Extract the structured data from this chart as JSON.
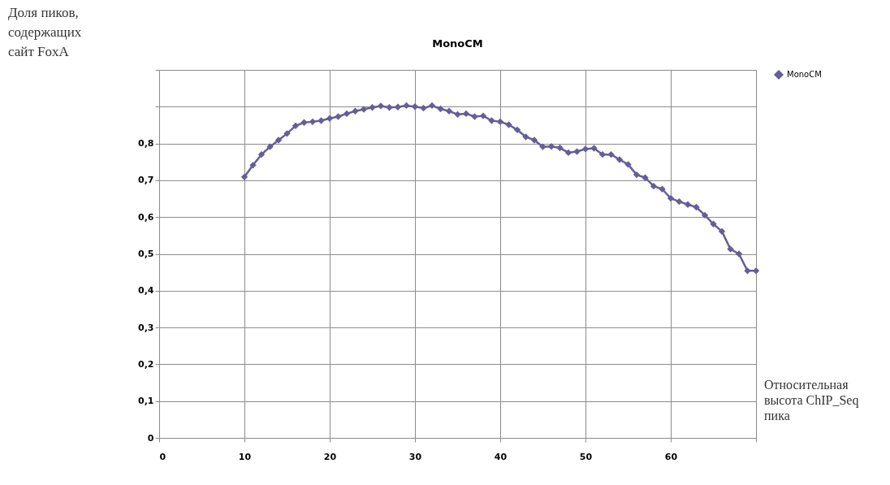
{
  "chart_data": {
    "type": "line",
    "title": "MonoCM",
    "xlabel": "Относительная высота ChIP_Seq пика",
    "ylabel": "Доля пиков, содержащих сайт FoxA",
    "x": [
      10,
      11,
      12,
      13,
      14,
      15,
      16,
      17,
      18,
      19,
      20,
      21,
      22,
      23,
      24,
      25,
      26,
      27,
      28,
      29,
      30,
      31,
      32,
      33,
      34,
      35,
      36,
      37,
      38,
      39,
      40,
      41,
      42,
      43,
      44,
      45,
      46,
      47,
      48,
      49,
      50,
      51,
      52,
      53,
      54,
      55,
      56,
      57,
      58,
      59,
      60,
      61,
      62,
      63,
      64,
      65,
      66,
      67,
      68,
      69,
      70
    ],
    "series": [
      {
        "name": "MonoCM",
        "color": "#635f98",
        "values": [
          0.709,
          0.741,
          0.77,
          0.791,
          0.809,
          0.827,
          0.848,
          0.857,
          0.859,
          0.862,
          0.868,
          0.873,
          0.881,
          0.888,
          0.893,
          0.898,
          0.902,
          0.898,
          0.899,
          0.903,
          0.9,
          0.896,
          0.903,
          0.894,
          0.888,
          0.879,
          0.881,
          0.873,
          0.875,
          0.862,
          0.859,
          0.851,
          0.837,
          0.818,
          0.809,
          0.791,
          0.792,
          0.788,
          0.775,
          0.778,
          0.785,
          0.787,
          0.77,
          0.77,
          0.756,
          0.743,
          0.715,
          0.707,
          0.684,
          0.676,
          0.651,
          0.642,
          0.634,
          0.627,
          0.605,
          0.581,
          0.561,
          0.513,
          0.5,
          0.454,
          0.454
        ]
      }
    ],
    "xlim": [
      0,
      70
    ],
    "xticks": [
      0,
      10,
      20,
      30,
      40,
      50,
      60,
      {
        "value": 70,
        "label": null
      }
    ],
    "ylim": [
      0,
      1
    ],
    "yticks": [
      0,
      {
        "value": 0.1,
        "label": "0,1"
      },
      {
        "value": 0.2,
        "label": "0,2"
      },
      {
        "value": 0.3,
        "label": "0,3"
      },
      {
        "value": 0.4,
        "label": "0,4"
      },
      {
        "value": 0.5,
        "label": "0,5"
      },
      {
        "value": 0.6,
        "label": "0,6"
      },
      {
        "value": 0.7,
        "label": "0,7"
      },
      {
        "value": 0.8,
        "label": "0,8"
      },
      {
        "value": 0.9,
        "label": null
      },
      {
        "value": 1,
        "label": null
      }
    ],
    "grid": true,
    "legend": "right",
    "marker": "diamond",
    "line_style": "solid"
  }
}
